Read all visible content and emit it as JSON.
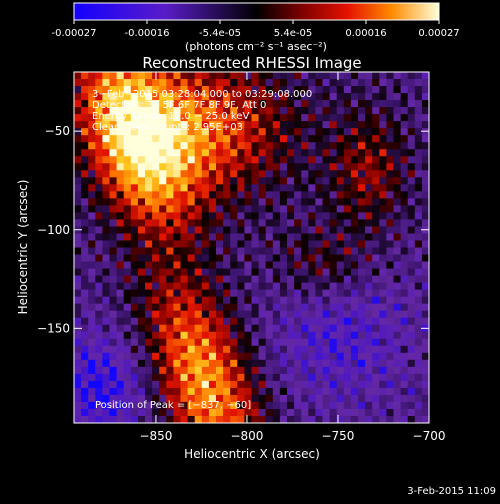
{
  "colorbar": {
    "ticks": [
      "-0.00027",
      "-0.00016",
      "-5.4e-05",
      "5.4e-05",
      "0.00016",
      "0.00027"
    ],
    "unit_label": "(photons cm⁻² s⁻¹ asec⁻²)",
    "range": [
      -0.00027,
      0.00027
    ]
  },
  "chart_data": {
    "type": "heatmap",
    "title": "Reconstructed RHESSI Image",
    "xlabel": "Heliocentric X (arcsec)",
    "ylabel": "Heliocentric Y (arcsec)",
    "xlim": [
      -895,
      -700
    ],
    "ylim": [
      -198,
      -20
    ],
    "xticks": [
      -850,
      -800,
      -750,
      -700
    ],
    "xtick_labels": [
      "−850",
      "−800",
      "−750",
      "−700"
    ],
    "yticks": [
      -150,
      -100,
      -50
    ],
    "ytick_labels": [
      "−150",
      "−100",
      "−50"
    ],
    "annotations": [
      "3−Feb−2015 03:28:04.000 to 03:29:08.000",
      "Detectors: 3F 5F 6F 7F 8F 9F, Att 0",
      "Energy Range: 12.0 − 25.0 keV",
      "Clean. Total counts: 2.95E+03"
    ],
    "peak_label": "Position of Peak = [−837, −60]",
    "peak_position": [
      -837,
      -60
    ],
    "grid": false
  },
  "footer": {
    "date": "3-Feb-2015 11:09"
  }
}
